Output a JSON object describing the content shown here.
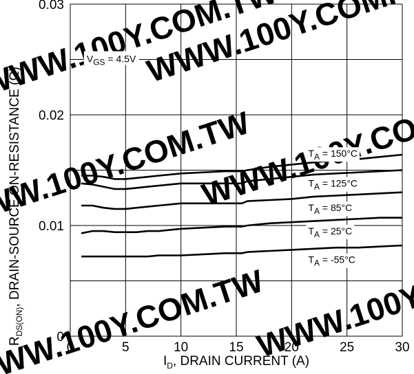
{
  "watermark": "WWW.100Y.COM.TW",
  "chart_data": {
    "type": "line",
    "xlabel": "I",
    "xlabel_sub": "D",
    "xlabel_rest": ", DRAIN CURRENT (A)",
    "ylabel": "R",
    "ylabel_sub": "DS(ON)",
    "ylabel_rest": ",  DRAIN-SOURCE ON-RESISTANCE (Ω)",
    "xlim": [
      0,
      30
    ],
    "ylim": [
      0,
      0.03
    ],
    "x_ticks": [
      {
        "value": 0,
        "label": "0"
      },
      {
        "value": 5,
        "label": "5"
      },
      {
        "value": 10,
        "label": "10"
      },
      {
        "value": 15,
        "label": "15"
      },
      {
        "value": 20,
        "label": "20"
      },
      {
        "value": 25,
        "label": "25"
      },
      {
        "value": 30,
        "label": "30"
      }
    ],
    "y_ticks": [
      {
        "value": 0,
        "label": "0"
      },
      {
        "value": 0.01,
        "label": "0.01"
      },
      {
        "value": 0.02,
        "label": "0.02"
      },
      {
        "value": 0.03,
        "label": "0.03"
      }
    ],
    "x_gridlines": [
      0,
      5,
      10,
      15,
      20,
      25,
      30
    ],
    "y_gridlines": [
      0,
      0.005,
      0.01,
      0.015,
      0.02,
      0.025,
      0.03
    ],
    "grid": true,
    "annotations": [
      {
        "main": "V",
        "sub": "GS",
        "rest": " = 4.5V",
        "x": 0.8,
        "y": 0.025
      }
    ],
    "series": [
      {
        "name": "T",
        "name_sub": "A",
        "name_rest": " = 150°C",
        "label_at": [
          21.5,
          0.0162
        ],
        "x": [
          1,
          2,
          3,
          4,
          5,
          6,
          7,
          8,
          9,
          10,
          12,
          14,
          15.5,
          16,
          18,
          20,
          22,
          24,
          26,
          28,
          30
        ],
        "y": [
          0.0145,
          0.0145,
          0.0144,
          0.0142,
          0.0142,
          0.0143,
          0.0144,
          0.0145,
          0.0146,
          0.0147,
          0.0148,
          0.0149,
          0.0149,
          0.015,
          0.0153,
          0.0155,
          0.0157,
          0.0159,
          0.016,
          0.0162,
          0.0164
        ]
      },
      {
        "name": "T",
        "name_sub": "A",
        "name_rest": " = 125°C",
        "label_at": [
          21.5,
          0.0135
        ],
        "x": [
          1,
          2,
          3,
          4,
          5,
          6,
          7,
          8,
          9,
          10,
          12,
          14,
          15.5,
          16,
          18,
          20,
          22,
          24,
          26,
          28,
          30
        ],
        "y": [
          0.0138,
          0.0137,
          0.0135,
          0.0133,
          0.0133,
          0.0134,
          0.0135,
          0.0136,
          0.0137,
          0.0138,
          0.0138,
          0.0138,
          0.0138,
          0.014,
          0.0142,
          0.0144,
          0.0146,
          0.0147,
          0.0148,
          0.0149,
          0.015
        ]
      },
      {
        "name": "T",
        "name_sub": "A",
        "name_rest": " = 85°C",
        "label_at": [
          21.5,
          0.0113
        ],
        "x": [
          1,
          2,
          3,
          4,
          5,
          6,
          7,
          8,
          9,
          10,
          12,
          14,
          15.5,
          16,
          18,
          20,
          22,
          24,
          26,
          28,
          30
        ],
        "y": [
          0.0118,
          0.0118,
          0.0116,
          0.0115,
          0.0115,
          0.0116,
          0.0117,
          0.0118,
          0.0119,
          0.012,
          0.012,
          0.012,
          0.012,
          0.0122,
          0.0123,
          0.0124,
          0.0126,
          0.0127,
          0.0128,
          0.0129,
          0.013
        ]
      },
      {
        "name": "T",
        "name_sub": "A",
        "name_rest": " = 25°C",
        "label_at": [
          21.5,
          0.0092
        ],
        "x": [
          1,
          2,
          3,
          4,
          5,
          6,
          7,
          8,
          9,
          10,
          12,
          14,
          15.5,
          16,
          18,
          20,
          22,
          24,
          26,
          28,
          30
        ],
        "y": [
          0.0093,
          0.0095,
          0.0095,
          0.0094,
          0.0094,
          0.0094,
          0.0095,
          0.0095,
          0.0096,
          0.0097,
          0.0098,
          0.0099,
          0.0099,
          0.01,
          0.0102,
          0.0103,
          0.0104,
          0.0105,
          0.0106,
          0.0107,
          0.0107
        ]
      },
      {
        "name": "T",
        "name_sub": "A",
        "name_rest": " = -55°C",
        "label_at": [
          21.5,
          0.0066
        ],
        "x": [
          1,
          2,
          3,
          4,
          5,
          6,
          7,
          8,
          9,
          10,
          12,
          14,
          15.5,
          16,
          18,
          20,
          22,
          24,
          26,
          28,
          30
        ],
        "y": [
          0.0072,
          0.0072,
          0.0072,
          0.0072,
          0.0072,
          0.0072,
          0.0072,
          0.0073,
          0.0073,
          0.0073,
          0.0074,
          0.0075,
          0.0075,
          0.0076,
          0.0077,
          0.0078,
          0.0079,
          0.008,
          0.008,
          0.0081,
          0.0082
        ]
      }
    ]
  }
}
